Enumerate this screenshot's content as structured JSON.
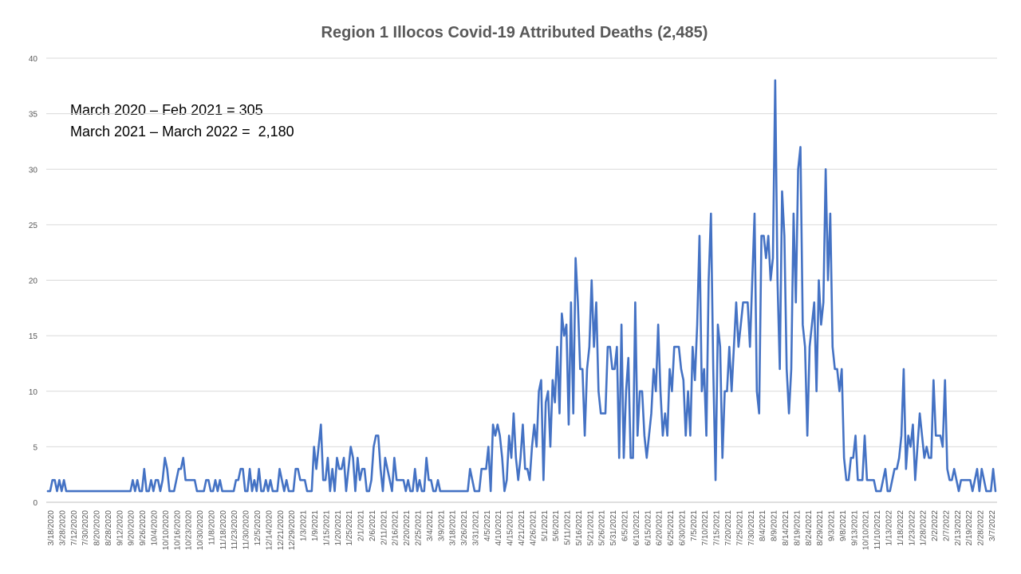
{
  "chart_data": {
    "type": "line",
    "title": "Region 1 Illocos Covid-19 Attributed Deaths (2,485)",
    "xlabel": "",
    "ylabel": "",
    "ylim": [
      0,
      40
    ],
    "yticks": [
      0,
      5,
      10,
      15,
      20,
      25,
      30,
      35,
      40
    ],
    "grid": "horizontal",
    "legend": "none",
    "line_color": "#4472C4",
    "annotations": [
      "March 2020 – Feb 2021 = 305",
      "March 2021 – March 2022 =  2,180"
    ],
    "x_tick_labels": [
      "3/18/2020",
      "3/28/2020",
      "7/12/2020",
      "7/30/2020",
      "8/20/2020",
      "8/28/2020",
      "9/12/2020",
      "9/20/2020",
      "9/26/2020",
      "10/4/2020",
      "10/10/2020",
      "10/16/2020",
      "10/23/2020",
      "10/30/2020",
      "11/8/2020",
      "11/18/2020",
      "11/23/2020",
      "11/30/2020",
      "12/5/2020",
      "12/14/2020",
      "12/21/2020",
      "12/29/2020",
      "1/3/2021",
      "1/9/2021",
      "1/15/2021",
      "1/20/2021",
      "1/25/2021",
      "2/1/2021",
      "2/6/2021",
      "2/11/2021",
      "2/16/2021",
      "2/20/2021",
      "2/25/2021",
      "3/4/2021",
      "3/9/2021",
      "3/18/2021",
      "3/26/2021",
      "3/31/2021",
      "4/5/2021",
      "4/10/2021",
      "4/15/2021",
      "4/21/2021",
      "4/26/2021",
      "5/1/2021",
      "5/6/2021",
      "5/11/2021",
      "5/16/2021",
      "5/21/2021",
      "5/26/2021",
      "5/31/2021",
      "6/5/2021",
      "6/10/2021",
      "6/15/2021",
      "6/20/2021",
      "6/25/2021",
      "6/30/2021",
      "7/5/2021",
      "7/10/2021",
      "7/15/2021",
      "7/20/2021",
      "7/25/2021",
      "7/30/2021",
      "8/4/2021",
      "8/9/2021",
      "8/14/2021",
      "8/19/2021",
      "8/24/2021",
      "8/29/2021",
      "9/3/2021",
      "9/8/2021",
      "9/13/2021",
      "10/10/2021",
      "11/10/2021",
      "1/13/2022",
      "1/18/2022",
      "1/23/2022",
      "1/28/2022",
      "2/2/2022",
      "2/7/2022",
      "2/13/2022",
      "2/19/2022",
      "2/28/2022",
      "3/7/2022"
    ],
    "values": [
      1,
      1,
      2,
      2,
      1,
      2,
      1,
      2,
      1,
      1,
      1,
      1,
      1,
      1,
      1,
      1,
      1,
      1,
      1,
      1,
      1,
      1,
      1,
      1,
      1,
      1,
      1,
      1,
      1,
      1,
      1,
      1,
      1,
      1,
      1,
      1,
      1,
      2,
      1,
      2,
      1,
      1,
      3,
      1,
      1,
      2,
      1,
      2,
      2,
      1,
      2,
      4,
      3,
      1,
      1,
      1,
      2,
      3,
      3,
      4,
      2,
      2,
      2,
      2,
      2,
      1,
      1,
      1,
      1,
      2,
      2,
      1,
      1,
      2,
      1,
      2,
      1,
      1,
      1,
      1,
      1,
      1,
      2,
      2,
      3,
      3,
      1,
      1,
      3,
      1,
      2,
      1,
      3,
      1,
      1,
      2,
      1,
      2,
      1,
      1,
      1,
      3,
      2,
      1,
      2,
      1,
      1,
      1,
      3,
      3,
      2,
      2,
      2,
      1,
      1,
      1,
      5,
      3,
      5,
      7,
      2,
      2,
      4,
      1,
      3,
      1,
      4,
      3,
      3,
      4,
      1,
      3,
      5,
      4,
      1,
      4,
      2,
      3,
      3,
      1,
      1,
      2,
      5,
      6,
      6,
      3,
      1,
      4,
      3,
      2,
      1,
      4,
      2,
      2,
      2,
      2,
      1,
      2,
      1,
      1,
      3,
      1,
      2,
      1,
      1,
      4,
      2,
      2,
      1,
      1,
      2,
      1,
      1,
      1,
      1,
      1,
      1,
      1,
      1,
      1,
      1,
      1,
      1,
      1,
      3,
      2,
      1,
      1,
      1,
      3,
      3,
      3,
      5,
      1,
      7,
      6,
      7,
      6,
      4,
      1,
      2,
      6,
      4,
      8,
      4,
      2,
      4,
      7,
      3,
      3,
      2,
      5,
      7,
      5,
      10,
      11,
      2,
      9,
      10,
      5,
      11,
      9,
      14,
      8,
      17,
      15,
      16,
      7,
      18,
      8,
      22,
      18,
      12,
      12,
      6,
      12,
      14,
      20,
      14,
      18,
      10,
      8,
      8,
      8,
      14,
      14,
      12,
      12,
      14,
      4,
      16,
      4,
      10,
      13,
      4,
      4,
      18,
      6,
      10,
      10,
      6,
      4,
      6,
      8,
      12,
      10,
      16,
      10,
      6,
      8,
      6,
      12,
      10,
      14,
      14,
      14,
      12,
      11,
      6,
      10,
      6,
      14,
      11,
      16,
      24,
      10,
      12,
      6,
      20,
      26,
      12,
      2,
      16,
      14,
      4,
      10,
      10,
      14,
      10,
      14,
      18,
      14,
      16,
      18,
      18,
      18,
      14,
      20,
      26,
      10,
      8,
      24,
      24,
      22,
      24,
      20,
      22,
      38,
      20,
      12,
      28,
      24,
      12,
      8,
      12,
      26,
      18,
      30,
      32,
      16,
      14,
      6,
      14,
      16,
      18,
      10,
      20,
      16,
      18,
      30,
      20,
      26,
      14,
      12,
      12,
      10,
      12,
      4,
      2,
      2,
      4,
      4,
      6,
      2,
      2,
      2,
      6,
      2,
      2,
      2,
      2,
      1,
      1,
      1,
      2,
      3,
      1,
      1,
      2,
      3,
      3,
      4,
      6,
      12,
      3,
      6,
      5,
      7,
      2,
      5,
      8,
      6,
      4,
      5,
      4,
      4,
      11,
      6,
      6,
      6,
      5,
      11,
      3,
      2,
      2,
      3,
      2,
      1,
      2,
      2,
      2,
      2,
      2,
      1,
      2,
      3,
      1,
      3,
      2,
      1,
      1,
      1,
      3,
      1
    ]
  }
}
